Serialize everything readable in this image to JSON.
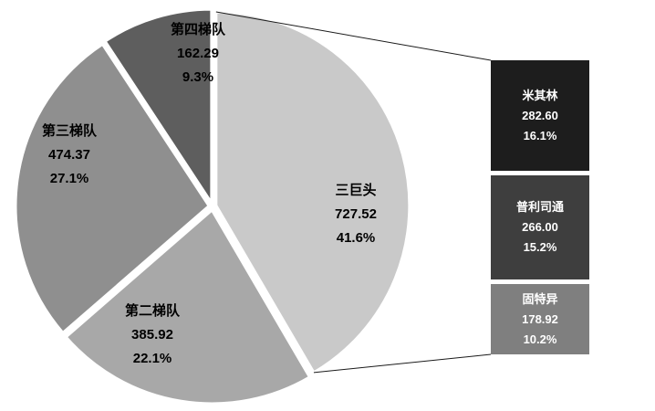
{
  "chart_data": {
    "type": "pie",
    "variant": "bar-of-pie",
    "title": "",
    "legend": "none",
    "palette": "grayscale",
    "slices": [
      {
        "label": "三巨头",
        "value": 727.52,
        "value_label": "727.52",
        "pct": "41.6%",
        "color": "#c9c9c9"
      },
      {
        "label": "第二梯队",
        "value": 385.92,
        "value_label": "385.92",
        "pct": "22.1%",
        "color": "#a8a8a8"
      },
      {
        "label": "第三梯队",
        "value": 474.37,
        "value_label": "474.37",
        "pct": "27.1%",
        "color": "#8f8f8f"
      },
      {
        "label": "第四梯队",
        "value": 162.29,
        "value_label": "162.29",
        "pct": "9.3%",
        "color": "#5e5e5e"
      }
    ],
    "breakdown_of": "三巨头",
    "breakdown": [
      {
        "label": "米其林",
        "value": 282.6,
        "value_label": "282.60",
        "pct": "16.1%",
        "color": "#1d1d1d"
      },
      {
        "label": "普利司通",
        "value": 266.0,
        "value_label": "266.00",
        "pct": "15.2%",
        "color": "#3e3e3e"
      },
      {
        "label": "固特异",
        "value": 178.92,
        "value_label": "178.92",
        "pct": "10.2%",
        "color": "#7f7f7f"
      }
    ]
  }
}
